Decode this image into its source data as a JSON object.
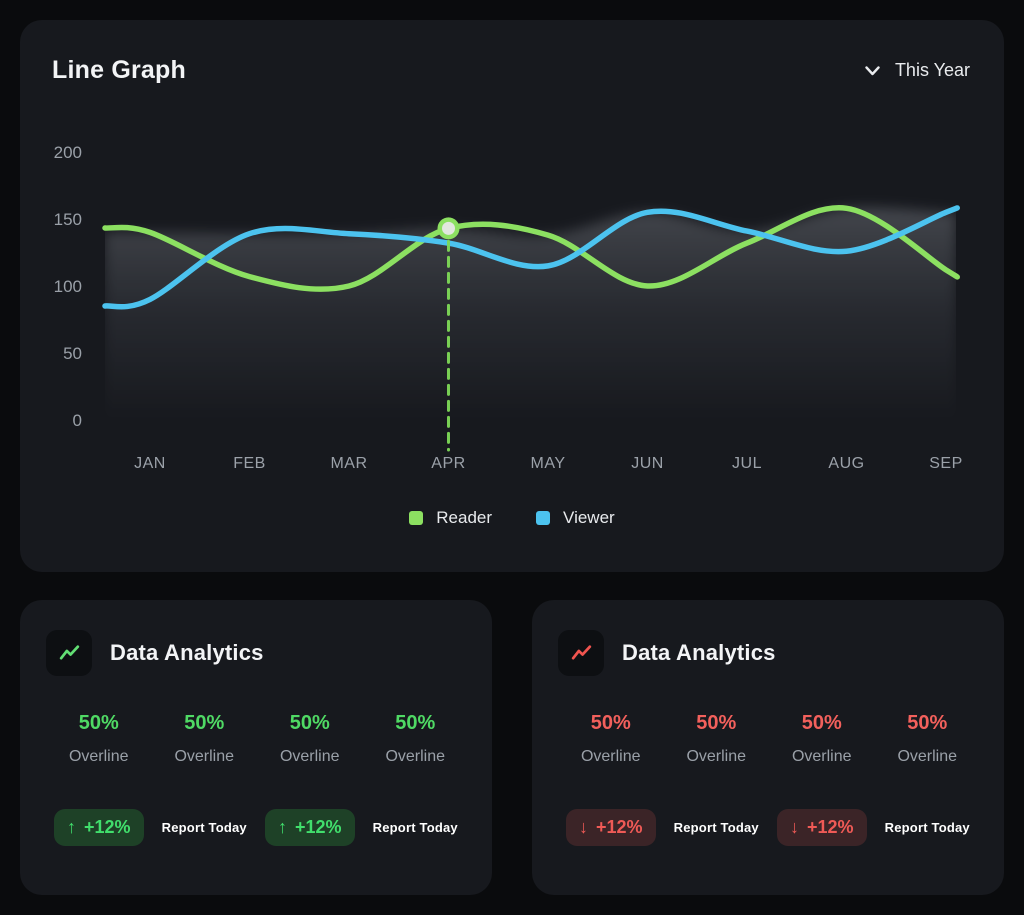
{
  "colors": {
    "page_bg": "#0a0b0d",
    "card_bg": "#17191e",
    "text_muted": "#9aa0a8",
    "reader_green": "#8ce061",
    "viewer_blue": "#4cc3ef"
  },
  "line_graph": {
    "title": "Line Graph",
    "period_selector": {
      "label": "This Year",
      "icon": "chevron-down-icon"
    },
    "legend": [
      {
        "label": "Reader",
        "color": "#8ce061"
      },
      {
        "label": "Viewer",
        "color": "#4cc3ef"
      }
    ],
    "chart_data": {
      "type": "line",
      "categories": [
        "JAN",
        "FEB",
        "MAR",
        "APR",
        "MAY",
        "JUN",
        "JUL",
        "AUG",
        "SEP"
      ],
      "series": [
        {
          "name": "Reader",
          "color": "#8ce061",
          "values": [
            140,
            107,
            100,
            143,
            138,
            100,
            132,
            158,
            112
          ]
        },
        {
          "name": "Viewer",
          "color": "#4cc3ef",
          "values": [
            90,
            139,
            139,
            132,
            115,
            155,
            141,
            126,
            155
          ]
        }
      ],
      "ylim": [
        0,
        200
      ],
      "yticks": [
        0,
        50,
        100,
        150,
        200
      ],
      "grid": false,
      "legend_position": "bottom",
      "area_fill": "soft gray gradient under upper envelope",
      "highlight": {
        "series": "Reader",
        "category": "APR",
        "value": 143,
        "marker": true,
        "dashed_drop_line": true
      }
    }
  },
  "analytics_cards": [
    {
      "title": "Data Analytics",
      "variant": "positive",
      "icon": "trend-up-chart-icon",
      "accent": "#4fd964",
      "badge_bg": "#1e4127",
      "badge_text": "#41df6c",
      "icon_color": "#62df74",
      "stats": [
        {
          "value": "50%",
          "label": "Overline"
        },
        {
          "value": "50%",
          "label": "Overline"
        },
        {
          "value": "50%",
          "label": "Overline"
        },
        {
          "value": "50%",
          "label": "Overline"
        }
      ],
      "footer": [
        {
          "type": "badge",
          "arrow": "up",
          "arrow_glyph": "↑",
          "text": "+12%"
        },
        {
          "type": "label",
          "text": "Report Today"
        },
        {
          "type": "badge",
          "arrow": "up",
          "arrow_glyph": "↑",
          "text": "+12%"
        },
        {
          "type": "label",
          "text": "Report Today"
        }
      ]
    },
    {
      "title": "Data Analytics",
      "variant": "negative",
      "icon": "trend-down-chart-icon",
      "accent": "#f2605c",
      "badge_bg": "#3b2427",
      "badge_text": "#ef5a56",
      "icon_color": "#f0544f",
      "stats": [
        {
          "value": "50%",
          "label": "Overline"
        },
        {
          "value": "50%",
          "label": "Overline"
        },
        {
          "value": "50%",
          "label": "Overline"
        },
        {
          "value": "50%",
          "label": "Overline"
        }
      ],
      "footer": [
        {
          "type": "badge",
          "arrow": "down",
          "arrow_glyph": "↓",
          "text": "+12%"
        },
        {
          "type": "label",
          "text": "Report Today"
        },
        {
          "type": "badge",
          "arrow": "down",
          "arrow_glyph": "↓",
          "text": "+12%"
        },
        {
          "type": "label",
          "text": "Report Today"
        }
      ]
    }
  ]
}
